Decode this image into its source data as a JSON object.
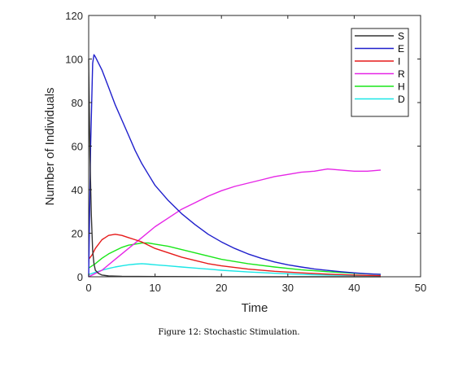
{
  "caption": "Figure 12: Stochastic Stimulation.",
  "chart_data": {
    "type": "line",
    "title": "",
    "xlabel": "Time",
    "ylabel": "Number of Individuals",
    "xlim": [
      0,
      50
    ],
    "ylim": [
      0,
      120
    ],
    "xticks": [
      0,
      10,
      20,
      30,
      40,
      50
    ],
    "yticks": [
      0,
      20,
      40,
      60,
      80,
      100,
      120
    ],
    "grid": false,
    "legend_position": "top-right",
    "series": [
      {
        "name": "S",
        "color": "#333333",
        "x": [
          0,
          0.2,
          0.4,
          0.6,
          0.8,
          1.0,
          1.5,
          2,
          3,
          5,
          10,
          20,
          30,
          44
        ],
        "y": [
          100,
          55,
          28,
          12,
          6,
          3,
          1.5,
          0.8,
          0.4,
          0.2,
          0.1,
          0.05,
          0,
          0
        ]
      },
      {
        "name": "E",
        "color": "#1f1fcc",
        "x": [
          0,
          0.3,
          0.6,
          0.8,
          1,
          2,
          3,
          4,
          5,
          6,
          7,
          8,
          9,
          10,
          12,
          14,
          16,
          18,
          20,
          22,
          24,
          26,
          28,
          30,
          32,
          34,
          36,
          38,
          40,
          42,
          44
        ],
        "y": [
          0,
          60,
          98,
          102,
          101,
          95,
          87,
          79,
          72,
          65,
          58,
          52,
          47,
          42,
          35,
          29,
          24,
          19.5,
          16,
          13,
          10.5,
          8.5,
          6.8,
          5.5,
          4.5,
          3.6,
          2.9,
          2.3,
          1.8,
          1.4,
          1.1
        ]
      },
      {
        "name": "I",
        "color": "#e61a1a",
        "x": [
          0,
          0.5,
          1,
          2,
          3,
          4,
          5,
          6,
          7,
          8,
          9,
          10,
          12,
          14,
          16,
          18,
          20,
          24,
          28,
          32,
          36,
          40,
          44
        ],
        "y": [
          8,
          10,
          13,
          17,
          19,
          19.5,
          19,
          18,
          17,
          16,
          14.5,
          13,
          11,
          9,
          7.5,
          6,
          5,
          3.5,
          2.5,
          1.8,
          1.2,
          0.8,
          0.5
        ]
      },
      {
        "name": "R",
        "color": "#e626e6",
        "x": [
          0,
          2,
          4,
          6,
          8,
          10,
          12,
          14,
          16,
          18,
          20,
          22,
          24,
          26,
          28,
          30,
          32,
          34,
          36,
          38,
          40,
          42,
          44
        ],
        "y": [
          0,
          3,
          8,
          13,
          18,
          23,
          27,
          31,
          34,
          37,
          39.5,
          41.5,
          43,
          44.5,
          46,
          47,
          48,
          48.5,
          49.5,
          49,
          48.5,
          48.5,
          49
        ]
      },
      {
        "name": "H",
        "color": "#1ae61a",
        "x": [
          0,
          1,
          2,
          3,
          4,
          5,
          6,
          7,
          8,
          9,
          10,
          12,
          14,
          16,
          18,
          20,
          24,
          28,
          32,
          36,
          40,
          44
        ],
        "y": [
          4,
          6,
          8.5,
          10.5,
          12,
          13.5,
          14.5,
          15,
          15.5,
          15.5,
          15,
          14,
          12.5,
          11,
          9.5,
          8,
          6,
          4.5,
          3.2,
          2.3,
          1.6,
          1.1
        ]
      },
      {
        "name": "D",
        "color": "#1ae6e6",
        "x": [
          0,
          1,
          2,
          3,
          4,
          5,
          6,
          7,
          8,
          9,
          10,
          12,
          14,
          16,
          18,
          20,
          24,
          28,
          32,
          36,
          40,
          44
        ],
        "y": [
          1,
          2,
          3,
          3.8,
          4.5,
          5,
          5.5,
          5.8,
          6,
          5.8,
          5.5,
          5,
          4.5,
          4,
          3.5,
          3,
          2.2,
          1.6,
          1.1,
          0.8,
          0.6,
          0.5
        ]
      }
    ]
  }
}
